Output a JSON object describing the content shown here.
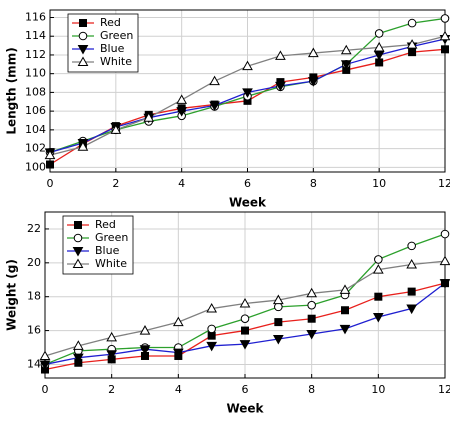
{
  "chart_data": [
    {
      "type": "line",
      "y_label": "Length (mm)",
      "x_label": "Week",
      "x": [
        0,
        1,
        2,
        3,
        4,
        5,
        6,
        7,
        8,
        9,
        10,
        11,
        12
      ],
      "xlim": [
        0,
        12
      ],
      "xticks": [
        0,
        2,
        4,
        6,
        8,
        10,
        12
      ],
      "ylim": [
        99.5,
        116.8
      ],
      "yticks": [
        100,
        102,
        104,
        106,
        108,
        110,
        112,
        114,
        116
      ],
      "grid": true,
      "legend": "upper left",
      "series": [
        {
          "name": "Red",
          "color": "#e8201c",
          "marker": "square",
          "marker_fill": "#000000",
          "values": [
            100.3,
            102.5,
            104.4,
            105.6,
            106.3,
            106.7,
            107.1,
            109.1,
            109.6,
            110.4,
            111.2,
            112.3,
            112.6
          ]
        },
        {
          "name": "Green",
          "color": "#2ca02c",
          "marker": "circle",
          "marker_fill": "#ffffff",
          "values": [
            101.6,
            102.8,
            104.0,
            104.9,
            105.5,
            106.5,
            107.6,
            108.6,
            109.2,
            111.0,
            114.3,
            115.4,
            115.9
          ]
        },
        {
          "name": "Blue",
          "color": "#1f1fd0",
          "marker": "triangle-down",
          "marker_fill": "#000000",
          "values": [
            101.6,
            102.6,
            104.3,
            105.3,
            106.0,
            106.6,
            108.0,
            108.7,
            109.2,
            111.0,
            112.0,
            112.9,
            113.7
          ]
        },
        {
          "name": "White",
          "color": "#808080",
          "marker": "triangle-up",
          "marker_fill": "#ffffff",
          "values": [
            101.3,
            102.2,
            104.0,
            105.3,
            107.2,
            109.2,
            110.8,
            111.9,
            112.2,
            112.5,
            112.8,
            113.1,
            114.0
          ]
        }
      ]
    },
    {
      "type": "line",
      "y_label": "Weight (g)",
      "x_label": "Week",
      "x": [
        0,
        1,
        2,
        3,
        4,
        5,
        6,
        7,
        8,
        9,
        10,
        11,
        12
      ],
      "xlim": [
        0,
        12
      ],
      "xticks": [
        0,
        2,
        4,
        6,
        8,
        10,
        12
      ],
      "ylim": [
        13.2,
        23.0
      ],
      "yticks": [
        14,
        16,
        18,
        20,
        22
      ],
      "grid": true,
      "legend": "upper left",
      "series": [
        {
          "name": "Red",
          "color": "#e8201c",
          "marker": "square",
          "marker_fill": "#000000",
          "values": [
            13.7,
            14.1,
            14.3,
            14.5,
            14.5,
            15.7,
            16.0,
            16.5,
            16.7,
            17.2,
            18.0,
            18.3,
            18.8
          ]
        },
        {
          "name": "Green",
          "color": "#2ca02c",
          "marker": "circle",
          "marker_fill": "#ffffff",
          "values": [
            14.0,
            14.8,
            14.9,
            15.0,
            15.0,
            16.1,
            16.7,
            17.4,
            17.5,
            18.1,
            20.2,
            21.0,
            21.7
          ]
        },
        {
          "name": "Blue",
          "color": "#1f1fd0",
          "marker": "triangle-down",
          "marker_fill": "#000000",
          "values": [
            14.0,
            14.4,
            14.6,
            14.9,
            14.7,
            15.1,
            15.2,
            15.5,
            15.8,
            16.1,
            16.8,
            17.3,
            18.8
          ]
        },
        {
          "name": "White",
          "color": "#808080",
          "marker": "triangle-up",
          "marker_fill": "#ffffff",
          "values": [
            14.5,
            15.1,
            15.6,
            16.0,
            16.5,
            17.3,
            17.6,
            17.8,
            18.2,
            18.4,
            19.6,
            19.9,
            20.1
          ]
        }
      ]
    }
  ]
}
